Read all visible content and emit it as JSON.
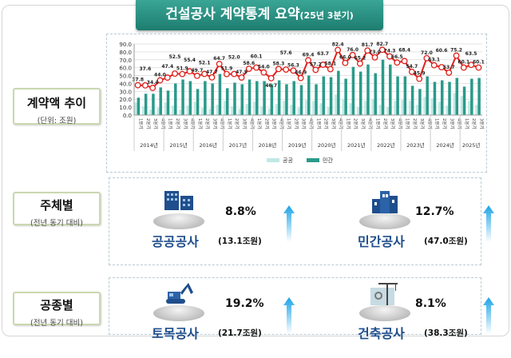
{
  "title": "건설공사 계약통계 요약",
  "title_sub": "(25년 3분기)",
  "section_labels": {
    "trend": "계약액 추이",
    "trend_unit": "(단위: 조원)",
    "by_owner": "주체별",
    "by_owner_sub": "(전년 동기 대비)",
    "by_type": "공종별",
    "by_type_sub": "(전년 동기 대비)"
  },
  "owner_items": [
    {
      "name": "공공공사",
      "pct": "8.8%",
      "amount": "(13.1조원)",
      "icon": "office-buildings-icon",
      "trend": "up"
    },
    {
      "name": "민간공사",
      "pct": "12.7%",
      "amount": "(47.0조원)",
      "icon": "buildings-icon",
      "trend": "up"
    }
  ],
  "type_items": [
    {
      "name": "토목공사",
      "pct": "19.2%",
      "amount": "(21.7조원)",
      "icon": "excavator-icon",
      "trend": "up"
    },
    {
      "name": "건축공사",
      "pct": "8.1%",
      "amount": "(38.3조원)",
      "icon": "crane-building-icon",
      "trend": "up"
    }
  ],
  "colors": {
    "banner": "#2a9283",
    "public": "#bfe9e4",
    "private": "#2a9a8a",
    "total_line": "#e0201b",
    "item_name": "#1f4e8c",
    "arrow": "#1aa3e8"
  },
  "chart_data": {
    "type": "bar+line",
    "ylim": [
      0,
      90
    ],
    "yticks": [
      "0.0",
      "10.0",
      "20.0",
      "30.0",
      "40.0",
      "50.0",
      "60.0",
      "70.0",
      "80.0",
      "90.0"
    ],
    "grid": true,
    "legend_placement": "bottom",
    "years": [
      "2014년",
      "2015년",
      "2016년",
      "2017년",
      "2018년",
      "2019년",
      "2020년",
      "2021년",
      "2022년",
      "2023년",
      "2024년",
      "2025년"
    ],
    "quarter_labels": [
      "1분기",
      "2분기",
      "3분기",
      "4분기"
    ],
    "series": [
      {
        "name": "공공",
        "type": "bar",
        "values": [
          16,
          11,
          7,
          9,
          16,
          12,
          7,
          12,
          17,
          9,
          8,
          13,
          18,
          11,
          8,
          14,
          17,
          11,
          8,
          14,
          18,
          13,
          9,
          19,
          18,
          15,
          10,
          26,
          20,
          15,
          10,
          18,
          20,
          13,
          10,
          18,
          19,
          18,
          13,
          23,
          21,
          17,
          12,
          28,
          24,
          18,
          13
        ]
      },
      {
        "name": "민간",
        "type": "bar",
        "values": [
          22,
          27,
          27,
          35,
          31,
          40,
          45,
          43,
          33,
          43,
          40,
          52,
          34,
          41,
          39,
          45,
          43,
          43,
          39,
          44,
          39,
          43,
          38,
          50,
          39,
          49,
          48,
          56,
          46,
          61,
          55,
          64,
          53,
          70,
          64,
          49,
          49,
          37,
          33,
          49,
          42,
          44,
          42,
          47,
          36,
          46,
          47
        ]
      },
      {
        "type": "line",
        "values": [
          37.8,
          37.6,
          34.4,
          44.0,
          47.4,
          52.5,
          51.9,
          55.4,
          49.7,
          52.1,
          47.7,
          64.7,
          51.9,
          52.0,
          47.5,
          58.6,
          60.1,
          54.0,
          46.7,
          58.3,
          57.6,
          56.3,
          46.9,
          69.4,
          57.2,
          63.7,
          58.1,
          82.4,
          66.0,
          76.0,
          65.2,
          81.7,
          73.0,
          82.7,
          74.3,
          66.5,
          68.4,
          54.7,
          45.9,
          72.0,
          63.1,
          60.6,
          53.7,
          75.2,
          60.1,
          63.5,
          60.1
        ]
      }
    ]
  }
}
